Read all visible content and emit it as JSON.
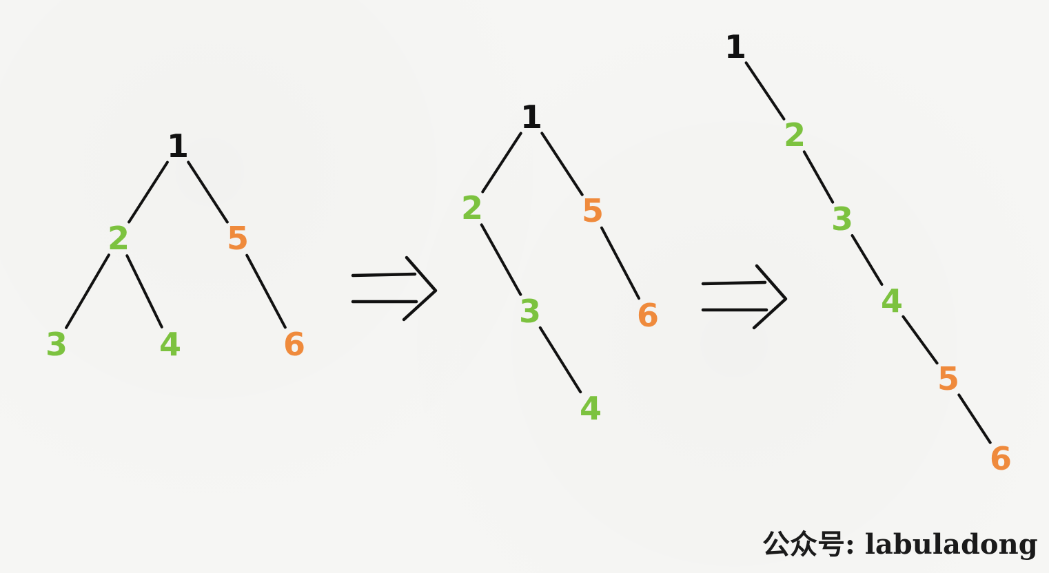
{
  "colors": {
    "root": "#111111",
    "green": "#7cc23f",
    "orange": "#ef8a3c",
    "edge": "#111111"
  },
  "trees": [
    {
      "id": "original",
      "nodes": [
        {
          "id": "n1",
          "label": "1",
          "color": "root"
        },
        {
          "id": "n2",
          "label": "2",
          "color": "green"
        },
        {
          "id": "n5",
          "label": "5",
          "color": "orange"
        },
        {
          "id": "n3",
          "label": "3",
          "color": "green"
        },
        {
          "id": "n4",
          "label": "4",
          "color": "green"
        },
        {
          "id": "n6",
          "label": "6",
          "color": "orange"
        }
      ],
      "edges": [
        [
          "n1",
          "n2"
        ],
        [
          "n1",
          "n5"
        ],
        [
          "n2",
          "n3"
        ],
        [
          "n2",
          "n4"
        ],
        [
          "n5",
          "n6"
        ]
      ]
    },
    {
      "id": "intermediate",
      "nodes": [
        {
          "id": "n1",
          "label": "1",
          "color": "root"
        },
        {
          "id": "n2",
          "label": "2",
          "color": "green"
        },
        {
          "id": "n5",
          "label": "5",
          "color": "orange"
        },
        {
          "id": "n3",
          "label": "3",
          "color": "green"
        },
        {
          "id": "n6",
          "label": "6",
          "color": "orange"
        },
        {
          "id": "n4",
          "label": "4",
          "color": "green"
        }
      ],
      "edges": [
        [
          "n1",
          "n2"
        ],
        [
          "n1",
          "n5"
        ],
        [
          "n2",
          "n3"
        ],
        [
          "n5",
          "n6"
        ],
        [
          "n3",
          "n4"
        ]
      ]
    },
    {
      "id": "flattened",
      "nodes": [
        {
          "id": "n1",
          "label": "1",
          "color": "root"
        },
        {
          "id": "n2",
          "label": "2",
          "color": "green"
        },
        {
          "id": "n3",
          "label": "3",
          "color": "green"
        },
        {
          "id": "n4",
          "label": "4",
          "color": "green"
        },
        {
          "id": "n5",
          "label": "5",
          "color": "orange"
        },
        {
          "id": "n6",
          "label": "6",
          "color": "orange"
        }
      ],
      "edges": [
        [
          "n1",
          "n2"
        ],
        [
          "n2",
          "n3"
        ],
        [
          "n3",
          "n4"
        ],
        [
          "n4",
          "n5"
        ],
        [
          "n5",
          "n6"
        ]
      ]
    }
  ],
  "arrows": [
    "double-arrow-icon",
    "double-arrow-icon"
  ],
  "watermark": "公众号: labuladong"
}
